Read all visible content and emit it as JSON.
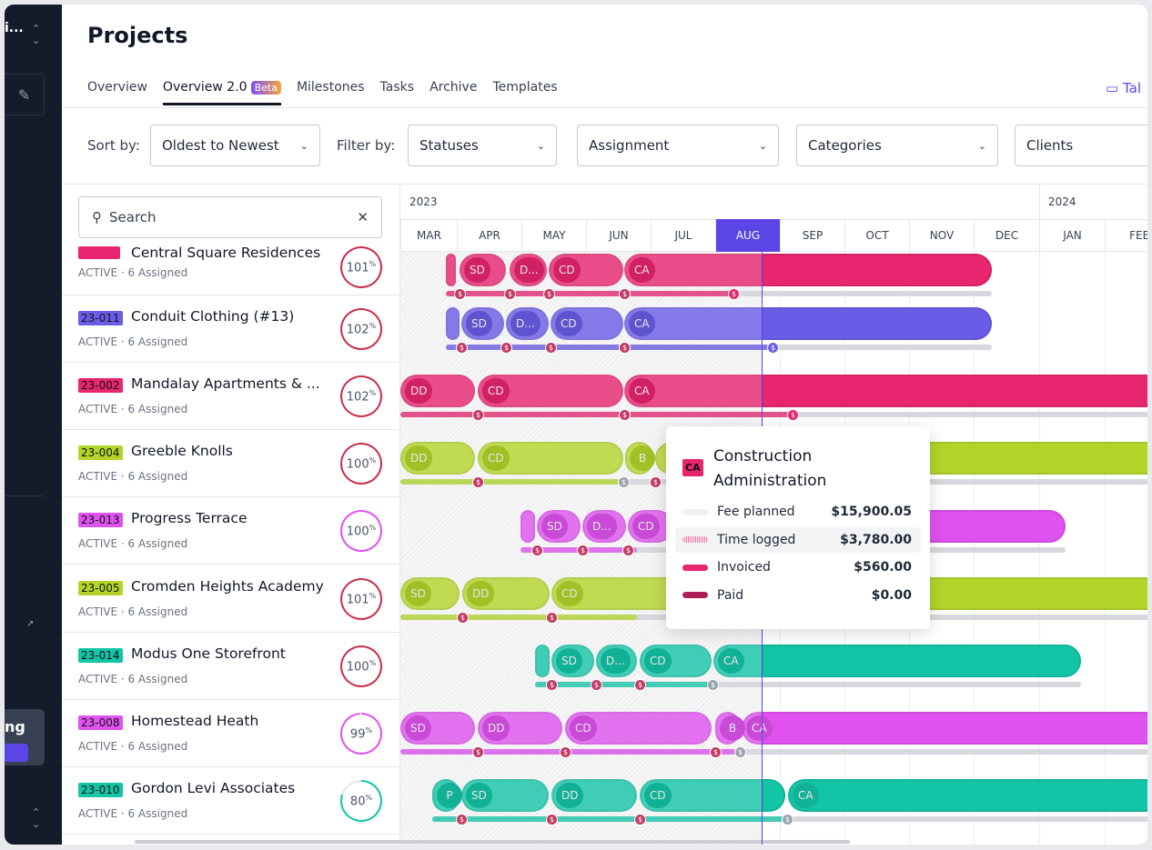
{
  "sidebar": {
    "workspace": "i...",
    "promo_text": "ng"
  },
  "header": {
    "title": "Projects",
    "tabs": [
      {
        "label": "Overview"
      },
      {
        "label": "Overview 2.0",
        "badge": "Beta"
      },
      {
        "label": "Milestones"
      },
      {
        "label": "Tasks"
      },
      {
        "label": "Archive"
      },
      {
        "label": "Templates"
      }
    ],
    "right_action": "Tal"
  },
  "filters": {
    "sort_label": "Sort by:",
    "sort_value": "Oldest to Newest",
    "filter_label": "Filter by:",
    "statuses": "Statuses",
    "assignment": "Assignment",
    "categories": "Categories",
    "clients": "Clients"
  },
  "search": {
    "placeholder": "Search"
  },
  "timeline": {
    "years": [
      "2023",
      "2024"
    ],
    "months": [
      "MAR",
      "APR",
      "MAY",
      "JUN",
      "JUL",
      "AUG",
      "SEP",
      "OCT",
      "NOV",
      "DEC",
      "JAN",
      "FEB"
    ],
    "current_month": "AUG"
  },
  "projects": [
    {
      "code": "",
      "name": "Central Square Residences",
      "status": "ACTIVE · 6 Assigned",
      "percent": "101",
      "color": "#e8256f",
      "phases": [
        "",
        "SD",
        "D...",
        "CD",
        "CA"
      ]
    },
    {
      "code": "23-011",
      "name": "Conduit Clothing (#13)",
      "status": "ACTIVE · 6 Assigned",
      "percent": "102",
      "color": "#6b5ce7",
      "phases": [
        "",
        "SD",
        "D...",
        "CD",
        "CA"
      ]
    },
    {
      "code": "23-002",
      "name": "Mandalay Apartments & ...",
      "status": "ACTIVE · 6 Assigned",
      "percent": "102",
      "color": "#e8256f",
      "phases": [
        "DD",
        "CD",
        "CA"
      ]
    },
    {
      "code": "23-004",
      "name": "Greeble Knolls",
      "status": "ACTIVE · 6 Assigned",
      "percent": "100",
      "color": "#b3d52a",
      "phases": [
        "DD",
        "CD",
        "B",
        ""
      ]
    },
    {
      "code": "23-013",
      "name": "Progress Terrace",
      "status": "ACTIVE · 6 Assigned",
      "percent": "100",
      "color": "#df52ef",
      "phases": [
        "",
        "SD",
        "D...",
        "CD",
        ""
      ]
    },
    {
      "code": "23-005",
      "name": "Cromden Heights Academy",
      "status": "ACTIVE · 6 Assigned",
      "percent": "101",
      "color": "#b3d52a",
      "phases": [
        "SD",
        "DD",
        "CD"
      ]
    },
    {
      "code": "23-014",
      "name": "Modus One Storefront",
      "status": "ACTIVE · 6 Assigned",
      "percent": "100",
      "color": "#13c5a7",
      "phases": [
        "",
        "SD",
        "D...",
        "CD",
        "CA"
      ]
    },
    {
      "code": "23-008",
      "name": "Homestead Heath",
      "status": "ACTIVE · 6 Assigned",
      "percent": "99",
      "color": "#df52ef",
      "phases": [
        "SD",
        "DD",
        "CD",
        "B",
        "CA"
      ]
    },
    {
      "code": "23-010",
      "name": "Gordon Levi Associates",
      "status": "ACTIVE · 6 Assigned",
      "percent": "80",
      "color": "#13c5a7",
      "phases": [
        "P",
        "SD",
        "DD",
        "CD",
        "CA"
      ]
    }
  ],
  "tooltip": {
    "code": "CA",
    "title": "Construction Administration",
    "rows": [
      {
        "label": "Fee planned",
        "value": "$15,900.05",
        "color": "#eef0f3"
      },
      {
        "label": "Time logged",
        "value": "$3,780.00",
        "color": "#f06a9c"
      },
      {
        "label": "Invoiced",
        "value": "$560.00",
        "color": "#e8256f"
      },
      {
        "label": "Paid",
        "value": "$0.00",
        "color": "#b01f5a"
      }
    ]
  },
  "currency_icon": "$"
}
